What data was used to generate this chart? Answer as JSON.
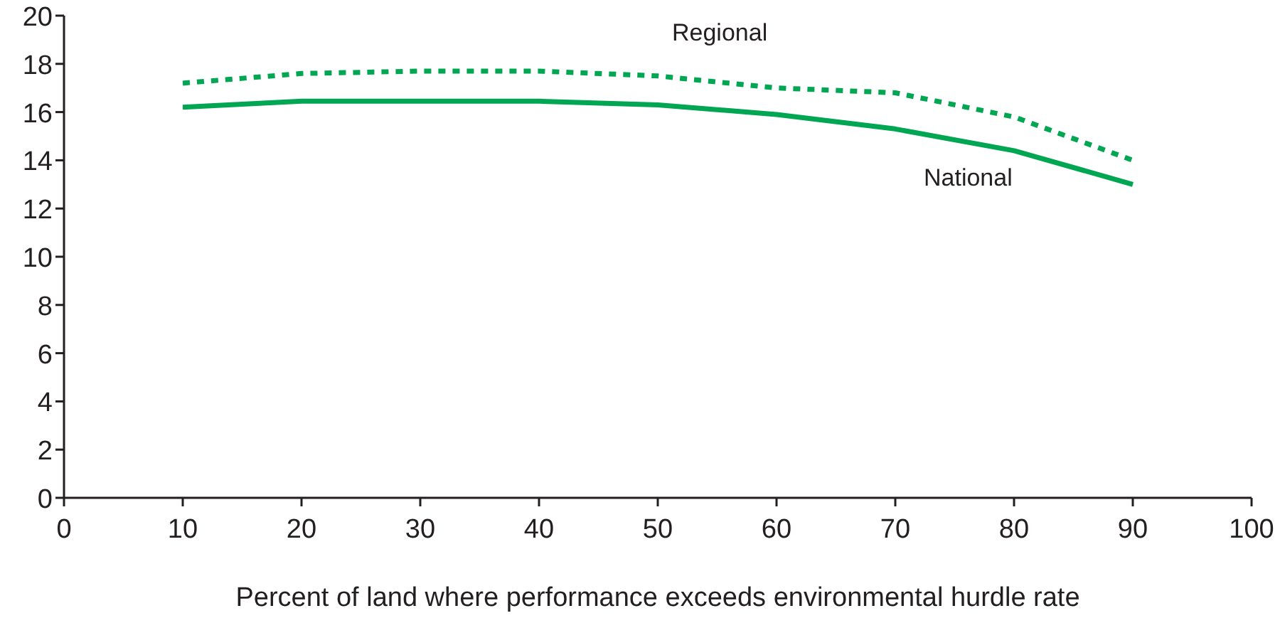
{
  "chart_data": {
    "type": "line",
    "xlabel": "Percent of land where performance exceeds environmental hurdle rate",
    "x": [
      10,
      20,
      30,
      40,
      50,
      60,
      70,
      80,
      90
    ],
    "series": [
      {
        "name": "Regional",
        "color": "#00a651",
        "line_style": "dotted",
        "values": [
          17.2,
          17.6,
          17.7,
          17.7,
          17.5,
          17.0,
          16.8,
          15.8,
          14.0
        ]
      },
      {
        "name": "National",
        "color": "#00a651",
        "line_style": "solid",
        "values": [
          16.2,
          16.45,
          16.45,
          16.45,
          16.3,
          15.9,
          15.3,
          14.4,
          13.0
        ]
      }
    ],
    "xlim": [
      0,
      100
    ],
    "xticks": [
      0,
      10,
      20,
      30,
      40,
      50,
      60,
      70,
      80,
      90,
      100
    ],
    "ylim": [
      0,
      20
    ],
    "yticks": [
      0,
      2,
      4,
      6,
      8,
      10,
      12,
      14,
      16,
      18,
      20
    ],
    "grid": false,
    "marker": "none"
  }
}
